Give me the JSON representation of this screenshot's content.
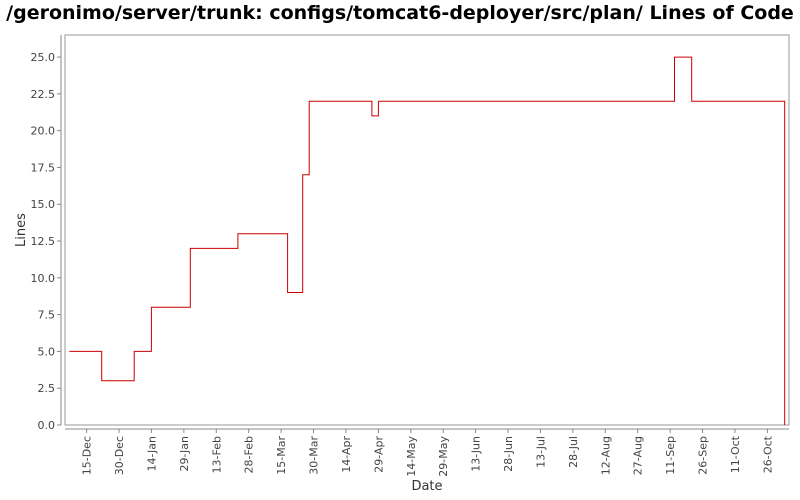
{
  "chart_data": {
    "type": "line",
    "title": "/geronimo/server/trunk: configs/tomcat6-deployer/src/plan/ Lines of Code",
    "xlabel": "Date",
    "ylabel": "Lines",
    "ylim": [
      0,
      26.5
    ],
    "yticks": [
      "0.0",
      "2.5",
      "5.0",
      "7.5",
      "10.0",
      "12.5",
      "15.0",
      "17.5",
      "20.0",
      "22.5",
      "25.0"
    ],
    "xticks": [
      "15-Dec",
      "30-Dec",
      "14-Jan",
      "29-Jan",
      "13-Feb",
      "28-Feb",
      "15-Mar",
      "30-Mar",
      "14-Apr",
      "29-Apr",
      "14-May",
      "29-May",
      "13-Jun",
      "28-Jun",
      "13-Jul",
      "28-Jul",
      "12-Aug",
      "27-Aug",
      "11-Sep",
      "26-Sep",
      "11-Oct",
      "26-Oct"
    ],
    "series": [
      {
        "color": "#cc0000",
        "step": true,
        "x": [
          "07-Dec",
          "22-Dec",
          "06-Jan",
          "14-Jan",
          "01-Feb",
          "23-Feb",
          "18-Mar",
          "25-Mar",
          "28-Mar",
          "31-Mar",
          "26-Apr",
          "29-Apr",
          "13-Sep",
          "21-Sep",
          "03-Nov",
          "03-Nov"
        ],
        "y": [
          5,
          3,
          5,
          8,
          12,
          13,
          9,
          17,
          22,
          22,
          21,
          22,
          25,
          22,
          22,
          0
        ]
      }
    ],
    "grid": false,
    "colors": {
      "line": "#cc0000",
      "frame": "#999999",
      "axis_text": "#444444"
    }
  }
}
